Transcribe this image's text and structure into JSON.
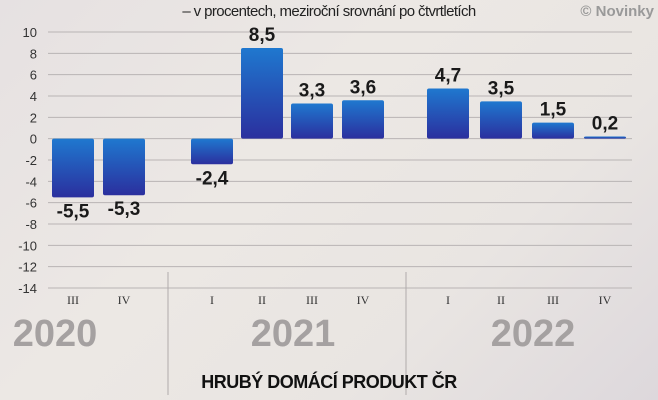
{
  "subtitle": "– v procentech, meziroční srovnání po čtvrtletích",
  "credit": "© Novinky",
  "chart_data": {
    "type": "bar",
    "title": "HRUBÝ DOMÁCÍ PRODUKT ČR",
    "subtitle": "– v procentech, meziroční srovnání po čtvrtletích",
    "categories": [
      "III",
      "IV",
      "I",
      "II",
      "III",
      "IV",
      "I",
      "II",
      "III",
      "IV"
    ],
    "groups": [
      {
        "label": "2020",
        "categories": [
          "III",
          "IV"
        ]
      },
      {
        "label": "2021",
        "categories": [
          "I",
          "II",
          "III",
          "IV"
        ]
      },
      {
        "label": "2022",
        "categories": [
          "I",
          "II",
          "III",
          "IV"
        ]
      }
    ],
    "values": [
      -5.5,
      -5.3,
      -2.4,
      8.5,
      3.3,
      3.6,
      4.7,
      3.5,
      1.5,
      0.2
    ],
    "data_labels": [
      "-5,5",
      "-5,3",
      "-2,4",
      "8,5",
      "3,3",
      "3,6",
      "4,7",
      "3,5",
      "1,5",
      "0,2"
    ],
    "yticks": [
      10,
      8,
      6,
      4,
      2,
      0,
      -2,
      -4,
      -6,
      -8,
      -10,
      -12,
      -14
    ],
    "ylim": [
      -14,
      10
    ],
    "grid": true,
    "colors": {
      "bar_top": "#1f78cf",
      "bar_bottom": "#2b2f9e",
      "grid": "#b9b4b4",
      "year": "#a5a1a1"
    }
  }
}
